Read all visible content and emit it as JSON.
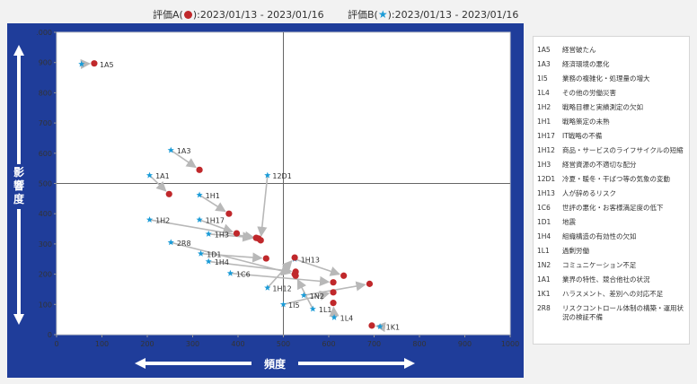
{
  "header": {
    "a_prefix": "評価A(",
    "a_suffix": "):2023/01/13 - 2023/01/16",
    "b_prefix": "評価B(",
    "b_suffix": "):2023/01/13 - 2023/01/16",
    "b_symbol": "★"
  },
  "colors": {
    "frame": "#1f3d9a",
    "dot": "#c0282b",
    "star": "#1a9bd7",
    "arrow": "#b8b8b8",
    "crosshair": "#666666"
  },
  "chart_data": {
    "type": "scatter",
    "xlabel": "頻度",
    "ylabel": "影響度",
    "xlim": [
      0,
      1000
    ],
    "ylim": [
      0,
      1000
    ],
    "xticks": [
      "0",
      "100",
      "200",
      "300",
      "400",
      "500",
      "600",
      "700",
      "800",
      "900",
      "1000"
    ],
    "yticks": [
      "0",
      "100",
      "200",
      "300",
      "400",
      "500",
      "600",
      "700",
      "800",
      "900",
      "1000"
    ],
    "crosshair": {
      "x": 500,
      "y": 500
    },
    "series": [
      {
        "name": "評価A",
        "marker": "dot"
      },
      {
        "name": "評価B",
        "marker": "star"
      }
    ],
    "points": [
      {
        "code": "1A5",
        "b": [
          55,
          895
        ],
        "a": [
          83,
          897
        ],
        "label_xy": [
          95,
          893
        ]
      },
      {
        "code": "1A3",
        "b": [
          252,
          610
        ],
        "a": [
          315,
          545
        ],
        "label_xy": [
          265,
          608
        ]
      },
      {
        "code": "1A1",
        "b": [
          205,
          527
        ],
        "a": [
          248,
          465
        ],
        "label_xy": [
          218,
          525
        ]
      },
      {
        "code": "1H1",
        "b": [
          315,
          462
        ],
        "a": [
          380,
          400
        ],
        "label_xy": [
          328,
          460
        ]
      },
      {
        "code": "1H2",
        "b": [
          205,
          380
        ],
        "a": [
          445,
          318
        ],
        "label_xy": [
          218,
          378
        ]
      },
      {
        "code": "1H17",
        "b": [
          315,
          380
        ],
        "a": [
          397,
          335
        ],
        "label_xy": [
          328,
          378
        ]
      },
      {
        "code": "1H3",
        "b": [
          335,
          333
        ],
        "a": [
          440,
          320
        ],
        "label_xy": [
          348,
          331
        ]
      },
      {
        "code": "2R8",
        "b": [
          252,
          305
        ],
        "a": [
          525,
          200
        ],
        "label_xy": [
          265,
          303
        ]
      },
      {
        "code": "1D1",
        "b": [
          318,
          268
        ],
        "a": [
          462,
          252
        ],
        "label_xy": [
          331,
          266
        ]
      },
      {
        "code": "1H4",
        "b": [
          335,
          242
        ],
        "a": [
          527,
          208
        ],
        "label_xy": [
          348,
          240
        ]
      },
      {
        "code": "1C6",
        "b": [
          383,
          203
        ],
        "a": [
          610,
          173
        ],
        "label_xy": [
          396,
          201
        ]
      },
      {
        "code": "12D1",
        "b": [
          465,
          527
        ],
        "a": [
          450,
          312
        ],
        "label_xy": [
          476,
          525
        ]
      },
      {
        "code": "1H13",
        "b": [
          525,
          250
        ],
        "a": [
          633,
          195
        ],
        "label_xy": [
          538,
          248
        ]
      },
      {
        "code": "1H12",
        "b": [
          465,
          155
        ],
        "a": [
          525,
          255
        ],
        "label_xy": [
          476,
          153
        ]
      },
      {
        "code": "1N2",
        "b": [
          545,
          130
        ],
        "a": [
          690,
          168
        ],
        "label_xy": [
          558,
          128
        ]
      },
      {
        "code": "1I5",
        "b": [
          500,
          100
        ],
        "a": [
          610,
          140
        ],
        "label_xy": [
          511,
          98
        ]
      },
      {
        "code": "1L1",
        "b": [
          565,
          85
        ],
        "a": [
          527,
          195
        ],
        "label_xy": [
          578,
          83
        ]
      },
      {
        "code": "1L4",
        "b": [
          612,
          57
        ],
        "a": [
          610,
          105
        ],
        "label_xy": [
          625,
          55
        ]
      },
      {
        "code": "1K1",
        "b": [
          713,
          27
        ],
        "a": [
          695,
          30
        ],
        "label_xy": [
          726,
          25
        ]
      }
    ]
  },
  "legend": [
    {
      "code": "1A5",
      "name": "経営破たん"
    },
    {
      "code": "1A3",
      "name": "経済環境の悪化"
    },
    {
      "code": "1I5",
      "name": "業務の複雑化・処理量の増大"
    },
    {
      "code": "1L4",
      "name": "その他の労働災害"
    },
    {
      "code": "1H2",
      "name": "戦略目標と実績測定の欠如"
    },
    {
      "code": "1H1",
      "name": "戦略策定の未熟"
    },
    {
      "code": "1H17",
      "name": "IT戦略の不備"
    },
    {
      "code": "1H12",
      "name": "商品・サービスのライフサイクルの短縮"
    },
    {
      "code": "1H3",
      "name": "経営資源の不適切な配分"
    },
    {
      "code": "12D1",
      "name": "冷夏・暖冬・干ばつ等の気象の変動"
    },
    {
      "code": "1H13",
      "name": "人が辞めるリスク"
    },
    {
      "code": "1C6",
      "name": "世評の悪化・お客様満足度の低下"
    },
    {
      "code": "1D1",
      "name": "地震"
    },
    {
      "code": "1H4",
      "name": "組織構造の有効性の欠如"
    },
    {
      "code": "1L1",
      "name": "過剰労働"
    },
    {
      "code": "1N2",
      "name": "コミュニケーション不足"
    },
    {
      "code": "1A1",
      "name": "業界の特性、競合他社の状況"
    },
    {
      "code": "1K1",
      "name": "ハラスメント、差別への対応不足"
    },
    {
      "code": "2R8",
      "name": "リスクコントロール体制の構築・運用状況の検証不備"
    }
  ]
}
